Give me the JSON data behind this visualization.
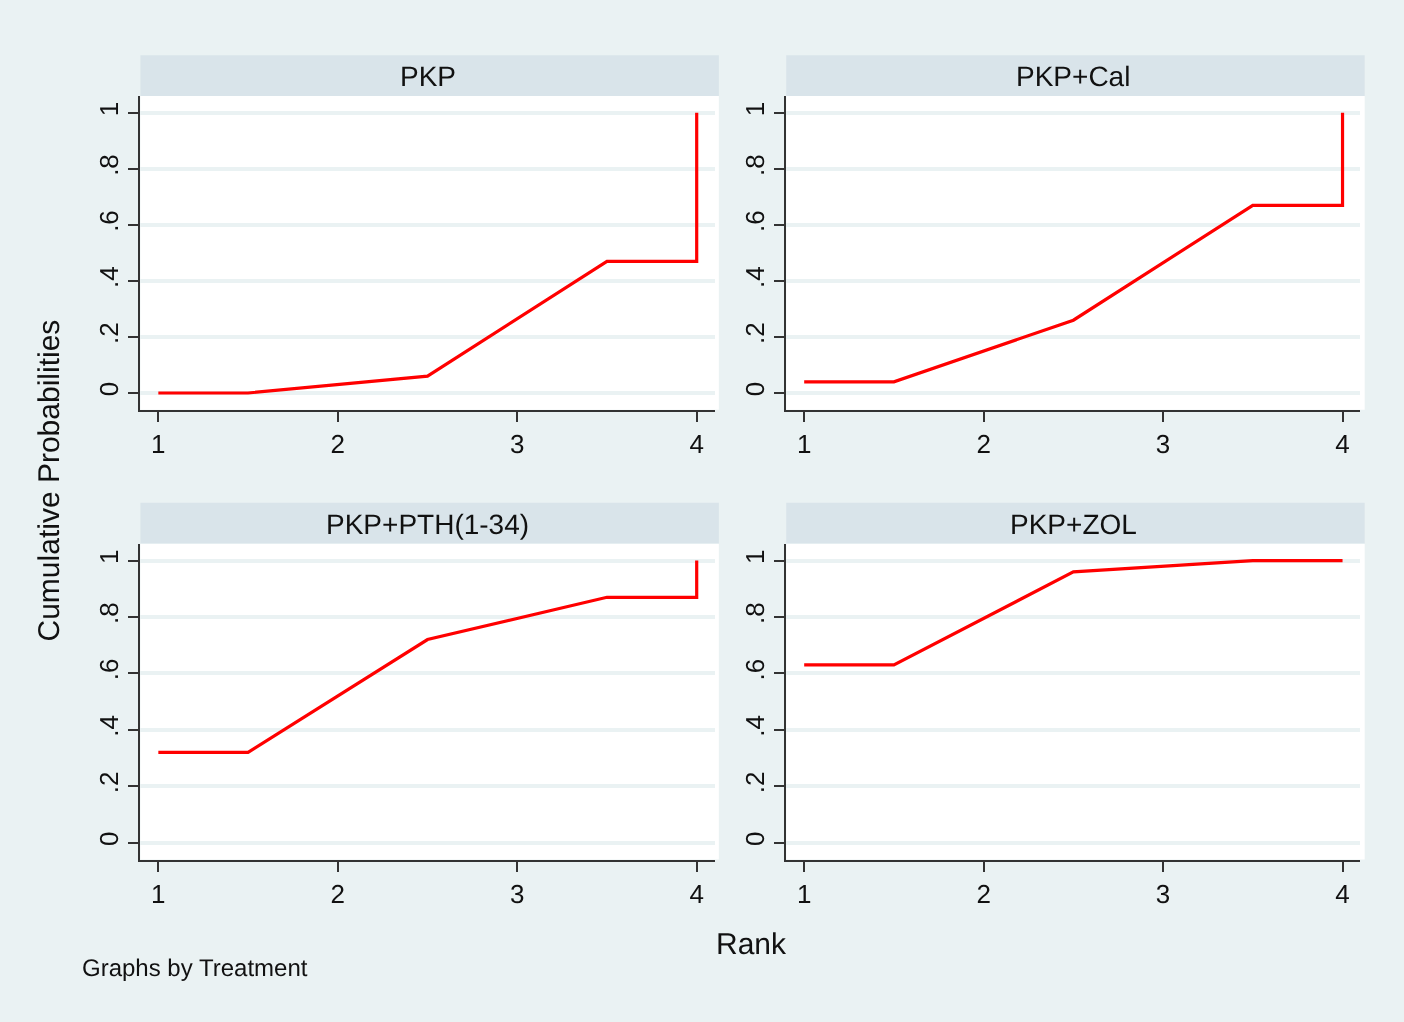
{
  "chart_data": [
    {
      "type": "line",
      "title": "PKP",
      "x": [
        1,
        1.5,
        2.5,
        3.5,
        4,
        4
      ],
      "series": [
        {
          "color": "#ff0000",
          "values": [
            0,
            0,
            0.06,
            0.47,
            0.47,
            1
          ]
        }
      ],
      "xlim": [
        0.9,
        4.1
      ],
      "ylim": [
        -0.06,
        1.06
      ],
      "xticks": [
        1,
        2,
        3,
        4
      ],
      "yticks": [
        0,
        {
          "value": 0.2,
          "label": ".2"
        },
        {
          "value": 0.4,
          "label": ".4"
        },
        {
          "value": 0.6,
          "label": ".6"
        },
        {
          "value": 0.8,
          "label": ".8"
        },
        1
      ],
      "grid": "y",
      "marker": "none",
      "line_style": "solid"
    },
    {
      "type": "line",
      "title": "PKP+Cal",
      "x": [
        1,
        1.5,
        2.5,
        3.5,
        4,
        4
      ],
      "series": [
        {
          "color": "#ff0000",
          "values": [
            0.04,
            0.04,
            0.26,
            0.67,
            0.67,
            1
          ]
        }
      ],
      "xlim": [
        0.9,
        4.1
      ],
      "ylim": [
        -0.06,
        1.06
      ],
      "xticks": [
        1,
        2,
        3,
        4
      ],
      "yticks": [
        0,
        {
          "value": 0.2,
          "label": ".2"
        },
        {
          "value": 0.4,
          "label": ".4"
        },
        {
          "value": 0.6,
          "label": ".6"
        },
        {
          "value": 0.8,
          "label": ".8"
        },
        1
      ],
      "grid": "y",
      "marker": "none",
      "line_style": "solid"
    },
    {
      "type": "line",
      "title": "PKP+PTH(1-34)",
      "ylabel": "Cumulative Probabilities",
      "annotations": [
        "Graphs by Treatment"
      ],
      "x": [
        1,
        1.5,
        2.5,
        3.5,
        4,
        4
      ],
      "series": [
        {
          "color": "#ff0000",
          "values": [
            0.32,
            0.32,
            0.72,
            0.87,
            0.87,
            1
          ]
        }
      ],
      "xlim": [
        0.9,
        4.1
      ],
      "ylim": [
        -0.06,
        1.06
      ],
      "xticks": [
        1,
        2,
        3,
        4
      ],
      "yticks": [
        0,
        {
          "value": 0.2,
          "label": ".2"
        },
        {
          "value": 0.4,
          "label": ".4"
        },
        {
          "value": 0.6,
          "label": ".6"
        },
        {
          "value": 0.8,
          "label": ".8"
        },
        1
      ],
      "grid": "y",
      "marker": "none",
      "line_style": "solid"
    },
    {
      "type": "line",
      "title": "PKP+ZOL",
      "xlabel": "Rank",
      "x": [
        1,
        1.5,
        2.5,
        3.5,
        4,
        4
      ],
      "series": [
        {
          "color": "#ff0000",
          "values": [
            0.63,
            0.63,
            0.96,
            1,
            1,
            1
          ]
        }
      ],
      "xlim": [
        0.9,
        4.1
      ],
      "ylim": [
        -0.06,
        1.06
      ],
      "xticks": [
        1,
        2,
        3,
        4
      ],
      "yticks": [
        0,
        {
          "value": 0.2,
          "label": ".2"
        },
        {
          "value": 0.4,
          "label": ".4"
        },
        {
          "value": 0.6,
          "label": ".6"
        },
        {
          "value": 0.8,
          "label": ".8"
        },
        1
      ],
      "grid": "y",
      "marker": "none",
      "line_style": "solid"
    }
  ]
}
